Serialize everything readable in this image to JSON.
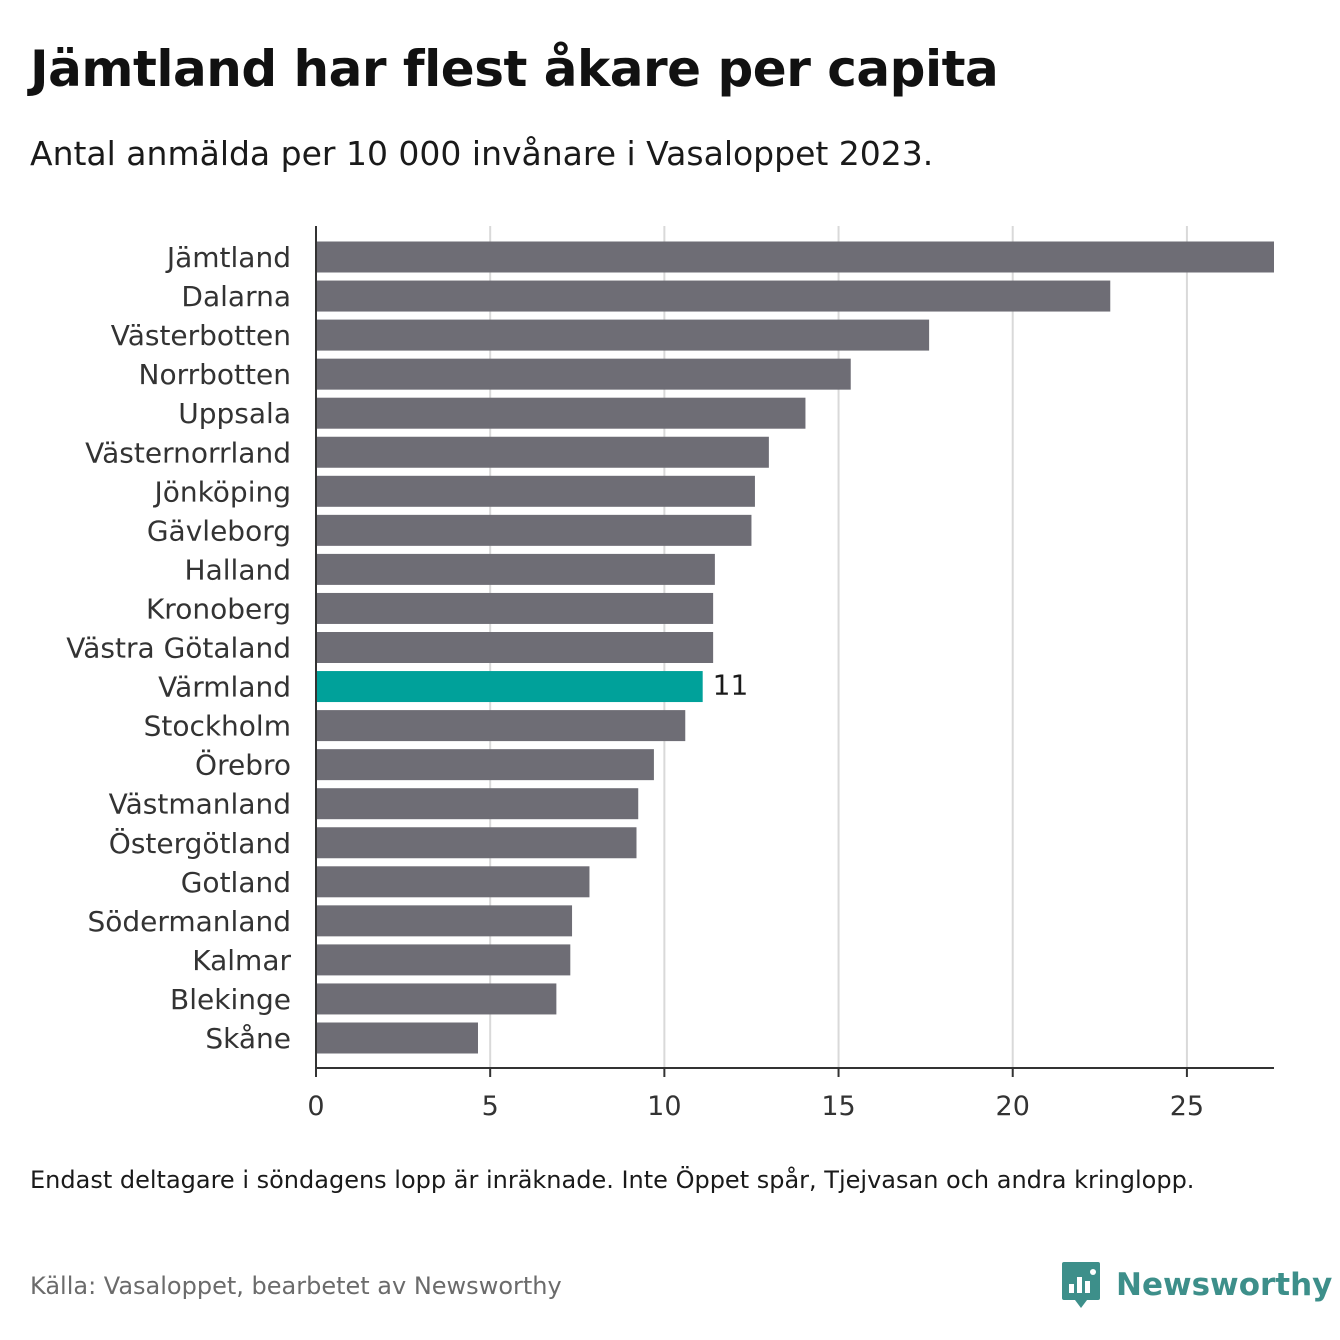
{
  "title": "Jämtland har flest åkare per capita",
  "subtitle": "Antal anmälda per 10 000 invånare i Vasaloppet 2023.",
  "note": "Endast deltagare i söndagens lopp är inräknade. Inte Öppet spår, Tjejvasan och andra kringlopp.",
  "source": "Källa: Vasaloppet, bearbetet av Newsworthy",
  "brand": {
    "name": "Newsworthy",
    "icon": "newsworthy-logo-icon",
    "color": "#3d8f8a"
  },
  "colors": {
    "bar": "#6e6d75",
    "highlight": "#00a19a",
    "grid": "#d9d9d9",
    "axis": "#333333"
  },
  "chart_data": {
    "type": "bar",
    "orientation": "horizontal",
    "categories": [
      "Jämtland",
      "Dalarna",
      "Västerbotten",
      "Norrbotten",
      "Uppsala",
      "Västernorrland",
      "Jönköping",
      "Gävleborg",
      "Halland",
      "Kronoberg",
      "Västra Götaland",
      "Värmland",
      "Stockholm",
      "Örebro",
      "Västmanland",
      "Östergötland",
      "Gotland",
      "Södermanland",
      "Kalmar",
      "Blekinge",
      "Skåne"
    ],
    "values": [
      27.5,
      22.8,
      17.6,
      15.35,
      14.05,
      13.0,
      12.6,
      12.5,
      11.45,
      11.4,
      11.4,
      11.1,
      10.6,
      9.7,
      9.25,
      9.2,
      7.85,
      7.35,
      7.3,
      6.9,
      4.65
    ],
    "highlight": {
      "category": "Värmland",
      "label": "11"
    },
    "xticks": [
      0,
      5,
      10,
      15,
      20,
      25
    ],
    "xlim": [
      0,
      27.5
    ],
    "grid": true
  }
}
